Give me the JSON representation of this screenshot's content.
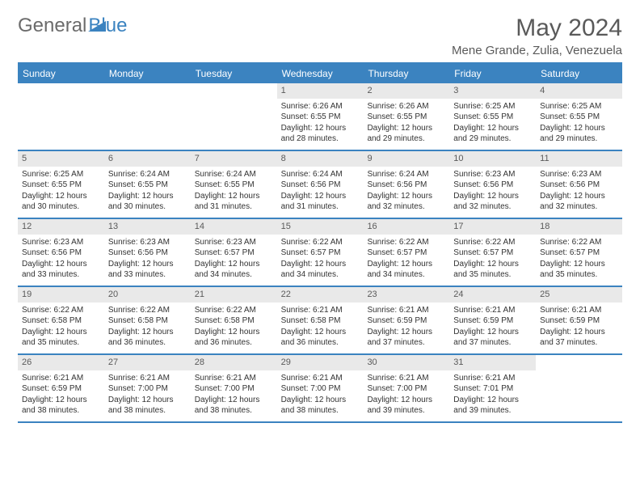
{
  "colors": {
    "accent": "#3b83c0",
    "header_bg": "#3b83c0",
    "header_text": "#ffffff",
    "daynum_bg": "#e9e9e9",
    "text_muted": "#5a5a5a",
    "row_border": "#3b83c0"
  },
  "typography": {
    "base_family": "Arial, Helvetica, sans-serif",
    "title_size_pt": 30,
    "location_size_pt": 15,
    "day_header_size_pt": 12,
    "daynum_size_pt": 11,
    "detail_size_pt": 10
  },
  "logo": {
    "text1": "General",
    "text2": "Blue"
  },
  "title": "May 2024",
  "location": "Mene Grande, Zulia, Venezuela",
  "dayNames": [
    "Sunday",
    "Monday",
    "Tuesday",
    "Wednesday",
    "Thursday",
    "Friday",
    "Saturday"
  ],
  "weeks": [
    [
      null,
      null,
      null,
      {
        "n": "1",
        "sr": "6:26 AM",
        "ss": "6:55 PM",
        "dl": "12 hours and 28 minutes."
      },
      {
        "n": "2",
        "sr": "6:26 AM",
        "ss": "6:55 PM",
        "dl": "12 hours and 29 minutes."
      },
      {
        "n": "3",
        "sr": "6:25 AM",
        "ss": "6:55 PM",
        "dl": "12 hours and 29 minutes."
      },
      {
        "n": "4",
        "sr": "6:25 AM",
        "ss": "6:55 PM",
        "dl": "12 hours and 29 minutes."
      }
    ],
    [
      {
        "n": "5",
        "sr": "6:25 AM",
        "ss": "6:55 PM",
        "dl": "12 hours and 30 minutes."
      },
      {
        "n": "6",
        "sr": "6:24 AM",
        "ss": "6:55 PM",
        "dl": "12 hours and 30 minutes."
      },
      {
        "n": "7",
        "sr": "6:24 AM",
        "ss": "6:55 PM",
        "dl": "12 hours and 31 minutes."
      },
      {
        "n": "8",
        "sr": "6:24 AM",
        "ss": "6:56 PM",
        "dl": "12 hours and 31 minutes."
      },
      {
        "n": "9",
        "sr": "6:24 AM",
        "ss": "6:56 PM",
        "dl": "12 hours and 32 minutes."
      },
      {
        "n": "10",
        "sr": "6:23 AM",
        "ss": "6:56 PM",
        "dl": "12 hours and 32 minutes."
      },
      {
        "n": "11",
        "sr": "6:23 AM",
        "ss": "6:56 PM",
        "dl": "12 hours and 32 minutes."
      }
    ],
    [
      {
        "n": "12",
        "sr": "6:23 AM",
        "ss": "6:56 PM",
        "dl": "12 hours and 33 minutes."
      },
      {
        "n": "13",
        "sr": "6:23 AM",
        "ss": "6:56 PM",
        "dl": "12 hours and 33 minutes."
      },
      {
        "n": "14",
        "sr": "6:23 AM",
        "ss": "6:57 PM",
        "dl": "12 hours and 34 minutes."
      },
      {
        "n": "15",
        "sr": "6:22 AM",
        "ss": "6:57 PM",
        "dl": "12 hours and 34 minutes."
      },
      {
        "n": "16",
        "sr": "6:22 AM",
        "ss": "6:57 PM",
        "dl": "12 hours and 34 minutes."
      },
      {
        "n": "17",
        "sr": "6:22 AM",
        "ss": "6:57 PM",
        "dl": "12 hours and 35 minutes."
      },
      {
        "n": "18",
        "sr": "6:22 AM",
        "ss": "6:57 PM",
        "dl": "12 hours and 35 minutes."
      }
    ],
    [
      {
        "n": "19",
        "sr": "6:22 AM",
        "ss": "6:58 PM",
        "dl": "12 hours and 35 minutes."
      },
      {
        "n": "20",
        "sr": "6:22 AM",
        "ss": "6:58 PM",
        "dl": "12 hours and 36 minutes."
      },
      {
        "n": "21",
        "sr": "6:22 AM",
        "ss": "6:58 PM",
        "dl": "12 hours and 36 minutes."
      },
      {
        "n": "22",
        "sr": "6:21 AM",
        "ss": "6:58 PM",
        "dl": "12 hours and 36 minutes."
      },
      {
        "n": "23",
        "sr": "6:21 AM",
        "ss": "6:59 PM",
        "dl": "12 hours and 37 minutes."
      },
      {
        "n": "24",
        "sr": "6:21 AM",
        "ss": "6:59 PM",
        "dl": "12 hours and 37 minutes."
      },
      {
        "n": "25",
        "sr": "6:21 AM",
        "ss": "6:59 PM",
        "dl": "12 hours and 37 minutes."
      }
    ],
    [
      {
        "n": "26",
        "sr": "6:21 AM",
        "ss": "6:59 PM",
        "dl": "12 hours and 38 minutes."
      },
      {
        "n": "27",
        "sr": "6:21 AM",
        "ss": "7:00 PM",
        "dl": "12 hours and 38 minutes."
      },
      {
        "n": "28",
        "sr": "6:21 AM",
        "ss": "7:00 PM",
        "dl": "12 hours and 38 minutes."
      },
      {
        "n": "29",
        "sr": "6:21 AM",
        "ss": "7:00 PM",
        "dl": "12 hours and 38 minutes."
      },
      {
        "n": "30",
        "sr": "6:21 AM",
        "ss": "7:00 PM",
        "dl": "12 hours and 39 minutes."
      },
      {
        "n": "31",
        "sr": "6:21 AM",
        "ss": "7:01 PM",
        "dl": "12 hours and 39 minutes."
      },
      null
    ]
  ],
  "labels": {
    "sunrise": "Sunrise:",
    "sunset": "Sunset:",
    "daylight": "Daylight:"
  }
}
